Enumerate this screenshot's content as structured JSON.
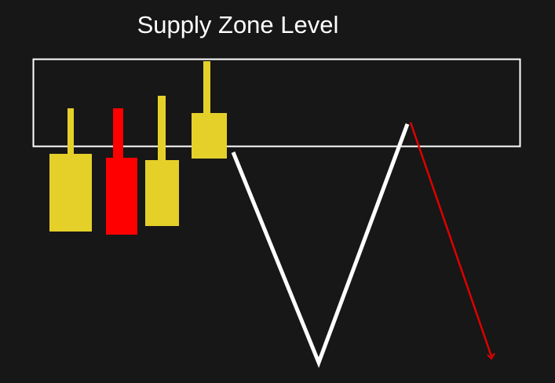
{
  "title": "Supply Zone Level",
  "colors": {
    "background": "#171717",
    "bullish_candle": "#e5d02a",
    "bearish_candle": "#ff0000",
    "zone_outline": "#ffffff",
    "price_path": "#ffffff",
    "projected_move": "#e00000"
  },
  "candles": [
    {
      "name": "candle-1",
      "direction": "bullish"
    },
    {
      "name": "candle-2",
      "direction": "bearish"
    },
    {
      "name": "candle-3",
      "direction": "bullish"
    },
    {
      "name": "candle-4",
      "direction": "bullish"
    }
  ],
  "price_path": [
    "drop-from-zone",
    "rally-back-to-zone"
  ],
  "projected_move": "down-from-zone",
  "arrowhead_icon": "arrow-down-icon"
}
